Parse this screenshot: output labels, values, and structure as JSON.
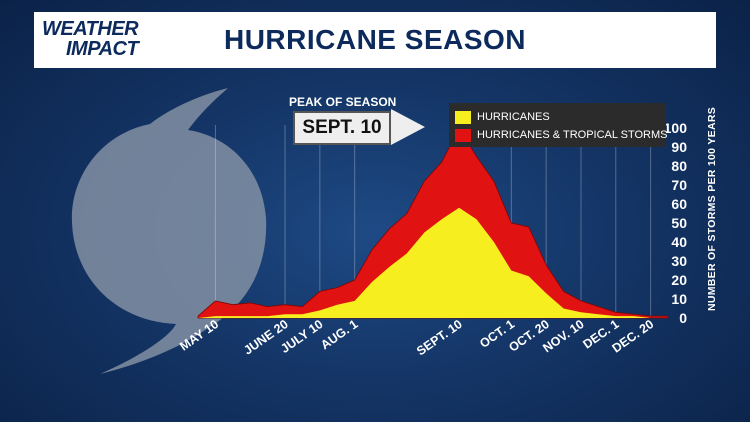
{
  "header": {
    "logo_line1": "WEATHER",
    "logo_line2": "IMPACT",
    "title": "HURRICANE SEASON"
  },
  "annotation": {
    "label": "PEAK OF SEASON",
    "value": "SEPT. 10"
  },
  "colors": {
    "hurricanes": "#f7ee1f",
    "hurricanes_and_tropical_storms": "#e01212",
    "background": "#143566",
    "storm_icon": "#8a96a8"
  },
  "chart_data": {
    "type": "area",
    "title": "HURRICANE SEASON",
    "xlabel": "",
    "ylabel": "NUMBER OF STORMS PER 100 YEARS",
    "ylim": [
      0,
      100
    ],
    "yticks": [
      0,
      10,
      20,
      30,
      40,
      50,
      60,
      70,
      80,
      90,
      100
    ],
    "y_axis_position": "right",
    "xticks": [
      "MAY 10",
      "JUNE 20",
      "JULY 10",
      "AUG. 1",
      "SEPT. 10",
      "OCT. 1",
      "OCT. 20",
      "NOV. 10",
      "DEC. 1",
      "DEC. 20"
    ],
    "grid": "vertical",
    "legend": {
      "placement": "top-right",
      "entries": [
        "HURRICANES",
        "HURRICANES & TROPICAL STORMS"
      ]
    },
    "x": [
      "May 1",
      "May 10",
      "May 20",
      "June 1",
      "June 10",
      "June 20",
      "July 1",
      "July 10",
      "July 20",
      "Aug. 1",
      "Aug. 10",
      "Aug. 20",
      "Aug. 25",
      "Sept. 1",
      "Sept. 5",
      "Sept. 10",
      "Sept. 15",
      "Sept. 20",
      "Oct. 1",
      "Oct. 10",
      "Oct. 20",
      "Oct. 30",
      "Nov. 10",
      "Nov. 20",
      "Dec. 1",
      "Dec. 10",
      "Dec. 20",
      "Dec. 31"
    ],
    "series": [
      {
        "name": "HURRICANES & TROPICAL STORMS",
        "values": [
          1,
          9,
          7,
          8,
          6,
          7,
          6,
          14,
          16,
          20,
          36,
          47,
          55,
          72,
          82,
          100,
          85,
          72,
          50,
          48,
          28,
          14,
          9,
          6,
          3,
          2,
          1,
          1
        ]
      },
      {
        "name": "HURRICANES",
        "values": [
          0,
          1,
          1,
          1,
          1,
          2,
          2,
          4,
          7,
          9,
          19,
          27,
          34,
          45,
          52,
          58,
          52,
          40,
          25,
          22,
          13,
          5,
          3,
          2,
          1,
          1,
          0,
          0
        ]
      }
    ]
  }
}
